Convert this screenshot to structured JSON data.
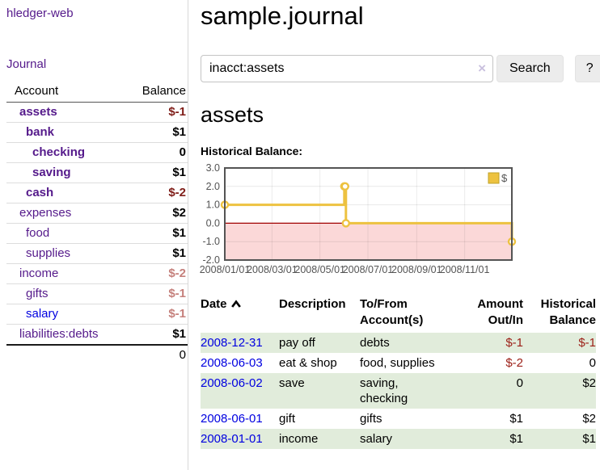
{
  "sidebar": {
    "app_title": "hledger-web",
    "journal_link": "Journal",
    "accounts": {
      "account_header": "Account",
      "balance_header": "Balance",
      "rows": [
        {
          "name": "assets",
          "balance": "$-1",
          "depth": 1,
          "bold": true,
          "tone": "neg-strong",
          "link": "purple"
        },
        {
          "name": "bank",
          "balance": "$1",
          "depth": 2,
          "bold": true,
          "tone": "",
          "link": "purple"
        },
        {
          "name": "checking",
          "balance": "0",
          "depth": 3,
          "bold": true,
          "tone": "",
          "link": "purple"
        },
        {
          "name": "saving",
          "balance": "$1",
          "depth": 3,
          "bold": true,
          "tone": "",
          "link": "purple"
        },
        {
          "name": "cash",
          "balance": "$-2",
          "depth": 2,
          "bold": true,
          "tone": "neg-strong",
          "link": "purple"
        },
        {
          "name": "expenses",
          "balance": "$2",
          "depth": 1,
          "bold": false,
          "tone": "",
          "link": "purple"
        },
        {
          "name": "food",
          "balance": "$1",
          "depth": 2,
          "bold": false,
          "tone": "",
          "link": "purple"
        },
        {
          "name": "supplies",
          "balance": "$1",
          "depth": 2,
          "bold": false,
          "tone": "",
          "link": "purple"
        },
        {
          "name": "income",
          "balance": "$-2",
          "depth": 1,
          "bold": false,
          "tone": "neg-soft",
          "link": "purple"
        },
        {
          "name": "gifts",
          "balance": "$-1",
          "depth": 2,
          "bold": false,
          "tone": "neg-soft",
          "link": "purple"
        },
        {
          "name": "salary",
          "balance": "$-1",
          "depth": 2,
          "bold": false,
          "tone": "neg-soft",
          "link": "blue"
        },
        {
          "name": "liabilities:debts",
          "balance": "$1",
          "depth": 1,
          "bold": false,
          "tone": "",
          "link": "purple"
        }
      ],
      "total": "0"
    }
  },
  "header": {
    "title": "sample.journal"
  },
  "search": {
    "query": "inacct:assets",
    "clear_icon": "×",
    "search_button": "Search",
    "help_button": "?"
  },
  "main": {
    "account_heading": "assets",
    "chart_label": "Historical Balance:"
  },
  "chart_data": {
    "type": "line",
    "step": true,
    "title": "Historical Balance",
    "legend_position": "top-right",
    "grid": true,
    "ylim": [
      -2,
      3
    ],
    "y_ticks": [
      "3.0",
      "2.0",
      "1.0",
      "0.0",
      "-1.0",
      "-2.0"
    ],
    "x_ticks": [
      "2008/01/01",
      "2008/03/01",
      "2008/05/01",
      "2008/07/01",
      "2008/09/01",
      "2008/11/01"
    ],
    "x_range": [
      "2008-01-01",
      "2008-12-31"
    ],
    "series": [
      {
        "name": "$",
        "color": "#edc240",
        "points": [
          [
            "2008-01-01",
            1
          ],
          [
            "2008-06-01",
            2
          ],
          [
            "2008-06-02",
            2
          ],
          [
            "2008-06-03",
            0
          ],
          [
            "2008-12-31",
            -1
          ]
        ]
      }
    ],
    "negative_region_color": "#fbd8d8",
    "zero_line_color": "#a00000",
    "border_color": "#545454",
    "tick_text_color": "#545454"
  },
  "register": {
    "sort_icon": "chevron-up",
    "headers": [
      {
        "key": "date",
        "label": "Date",
        "align": "left",
        "sortable": true,
        "sorted": "asc"
      },
      {
        "key": "description",
        "label": "Description",
        "align": "left",
        "sortable": false
      },
      {
        "key": "accounts",
        "label": "To/From\nAccount(s)",
        "align": "left",
        "sortable": false
      },
      {
        "key": "amount",
        "label": "Amount\nOut/In",
        "align": "right",
        "sortable": false
      },
      {
        "key": "balance",
        "label": "Historical\nBalance",
        "align": "right",
        "sortable": false
      }
    ],
    "rows": [
      {
        "date": "2008-12-31",
        "description": "pay off",
        "accounts": "debts",
        "amount": "$-1",
        "amount_neg": true,
        "balance": "$-1",
        "balance_neg": true
      },
      {
        "date": "2008-06-03",
        "description": "eat & shop",
        "accounts": "food, supplies",
        "amount": "$-2",
        "amount_neg": true,
        "balance": "0",
        "balance_neg": false
      },
      {
        "date": "2008-06-02",
        "description": "save",
        "accounts": "saving, checking",
        "amount": "0",
        "amount_neg": false,
        "balance": "$2",
        "balance_neg": false
      },
      {
        "date": "2008-06-01",
        "description": "gift",
        "accounts": "gifts",
        "amount": "$1",
        "amount_neg": false,
        "balance": "$2",
        "balance_neg": false
      },
      {
        "date": "2008-01-01",
        "description": "income",
        "accounts": "salary",
        "amount": "$1",
        "amount_neg": false,
        "balance": "$1",
        "balance_neg": false
      }
    ]
  }
}
